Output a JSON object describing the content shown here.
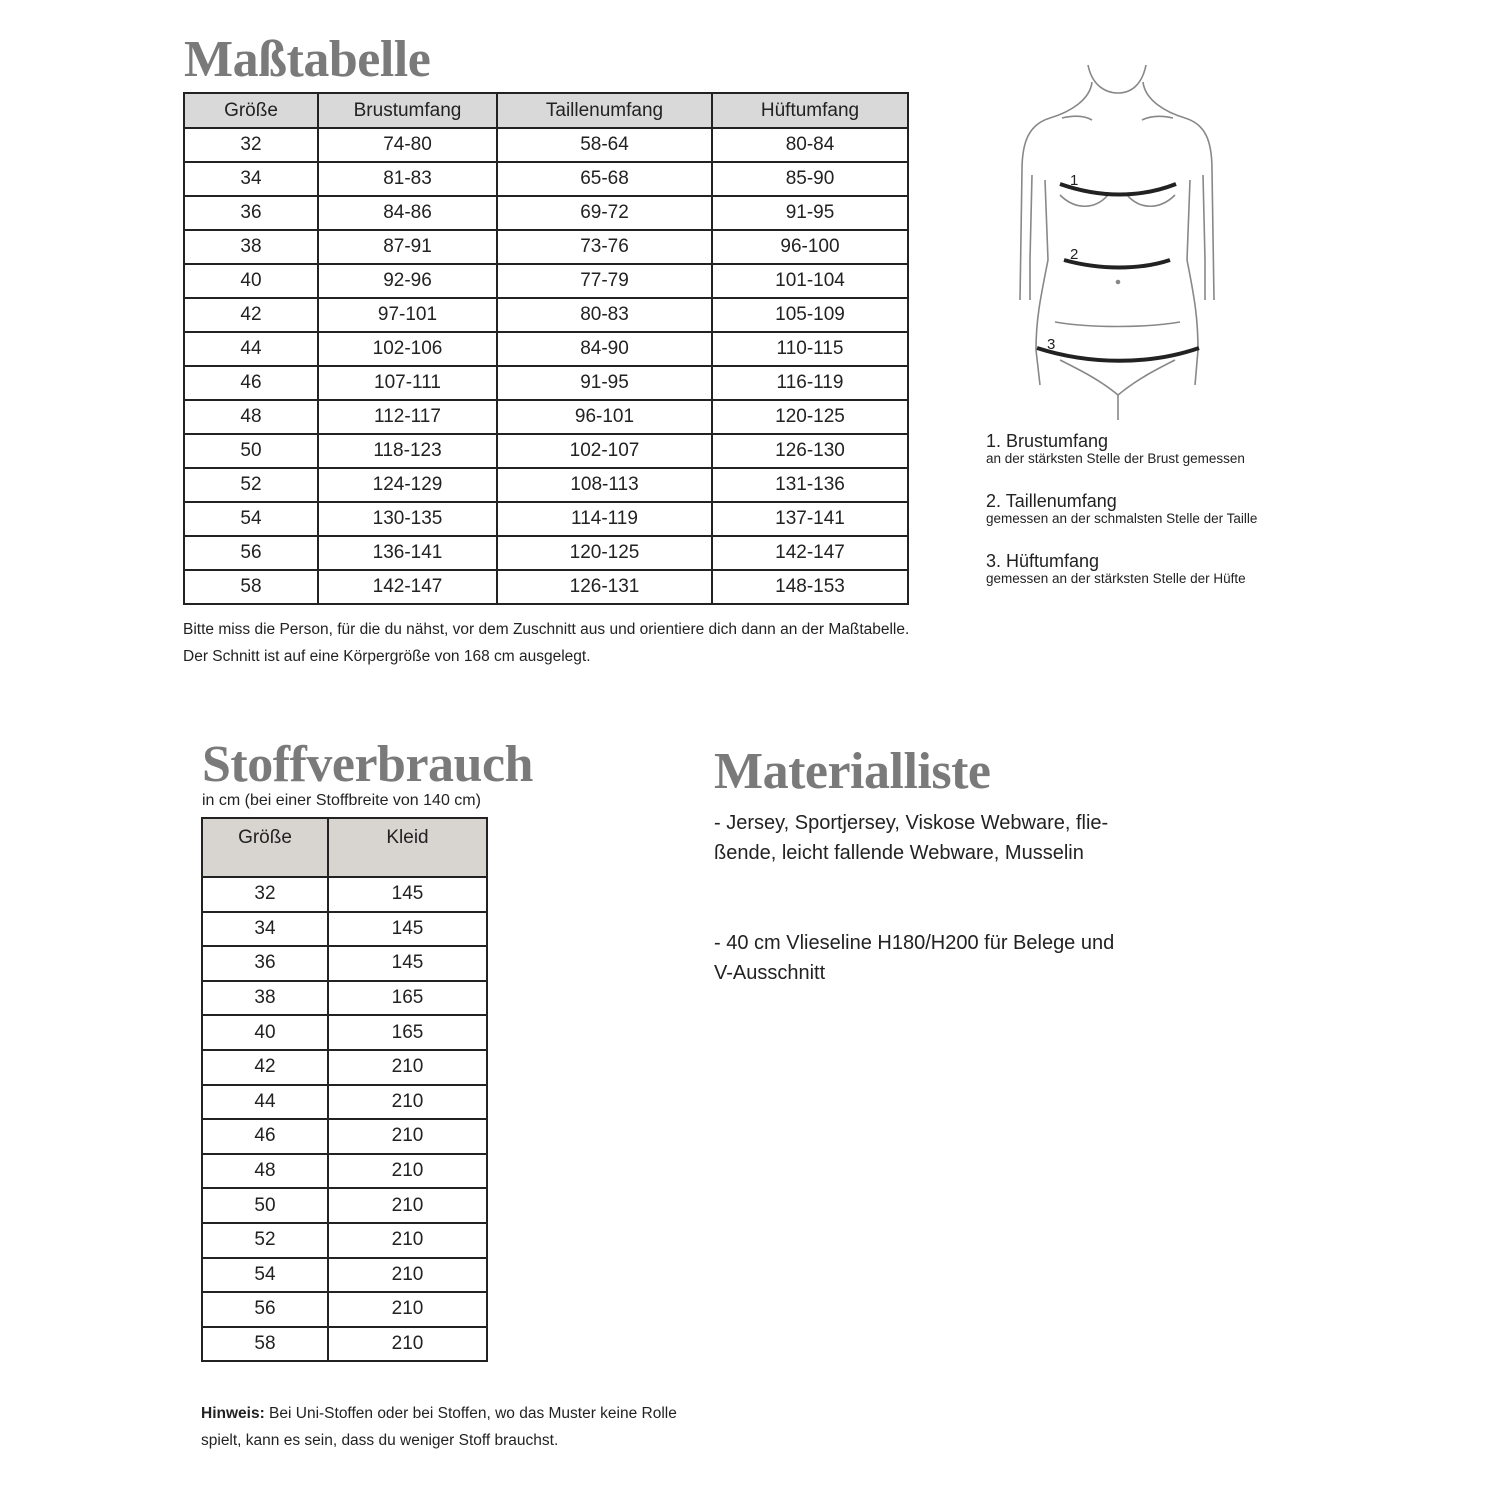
{
  "size_chart": {
    "title": "Maßtabelle",
    "headers": [
      "Größe",
      "Brustumfang",
      "Taillenumfang",
      "Hüftumfang"
    ],
    "rows": [
      [
        "32",
        "74-80",
        "58-64",
        "80-84"
      ],
      [
        "34",
        "81-83",
        "65-68",
        "85-90"
      ],
      [
        "36",
        "84-86",
        "69-72",
        "91-95"
      ],
      [
        "38",
        "87-91",
        "73-76",
        "96-100"
      ],
      [
        "40",
        "92-96",
        "77-79",
        "101-104"
      ],
      [
        "42",
        "97-101",
        "80-83",
        "105-109"
      ],
      [
        "44",
        "102-106",
        "84-90",
        "110-115"
      ],
      [
        "46",
        "107-111",
        "91-95",
        "116-119"
      ],
      [
        "48",
        "112-117",
        "96-101",
        "120-125"
      ],
      [
        "50",
        "118-123",
        "102-107",
        "126-130"
      ],
      [
        "52",
        "124-129",
        "108-113",
        "131-136"
      ],
      [
        "54",
        "130-135",
        "114-119",
        "137-141"
      ],
      [
        "56",
        "136-141",
        "120-125",
        "142-147"
      ],
      [
        "58",
        "142-147",
        "126-131",
        "148-153"
      ]
    ],
    "note_lines": [
      "Bitte miss die Person, für die du nähst, vor dem Zuschnitt aus und orientiere dich dann an der Maßtabelle.",
      "Der Schnitt ist auf eine Körpergröße von 168 cm ausgelegt."
    ]
  },
  "figure": {
    "markers": [
      "1",
      "2",
      "3"
    ],
    "legend": [
      {
        "title": "1. Brustumfang",
        "desc": "an der stärksten Stelle der Brust gemessen"
      },
      {
        "title": "2. Taillenumfang",
        "desc": "gemessen an der schmalsten Stelle der Taille"
      },
      {
        "title": "3. Hüftumfang",
        "desc": "gemessen an der stärksten Stelle der Hüfte"
      }
    ]
  },
  "fabric": {
    "title": "Stoffverbrauch",
    "subtitle": "in cm (bei einer Stoffbreite von 140 cm)",
    "headers": [
      "Größe",
      "Kleid"
    ],
    "rows": [
      [
        "32",
        "145"
      ],
      [
        "34",
        "145"
      ],
      [
        "36",
        "145"
      ],
      [
        "38",
        "165"
      ],
      [
        "40",
        "165"
      ],
      [
        "42",
        "210"
      ],
      [
        "44",
        "210"
      ],
      [
        "46",
        "210"
      ],
      [
        "48",
        "210"
      ],
      [
        "50",
        "210"
      ],
      [
        "52",
        "210"
      ],
      [
        "54",
        "210"
      ],
      [
        "56",
        "210"
      ],
      [
        "58",
        "210"
      ]
    ],
    "hint_label": "Hinweis:",
    "hint_lines": [
      " Bei Uni-Stoffen oder bei Stoffen, wo das Muster keine Rolle",
      "spielt, kann es sein, dass du weniger Stoff brauchst."
    ]
  },
  "materials": {
    "title": "Materialliste",
    "items": [
      [
        "- Jersey, Sportjersey, Viskose Webware, flie-",
        "ßende, leicht fallende Webware, Musselin"
      ],
      [
        "- 40 cm Vlieseline H180/H200 für Belege und",
        "V-Ausschnitt"
      ]
    ]
  }
}
